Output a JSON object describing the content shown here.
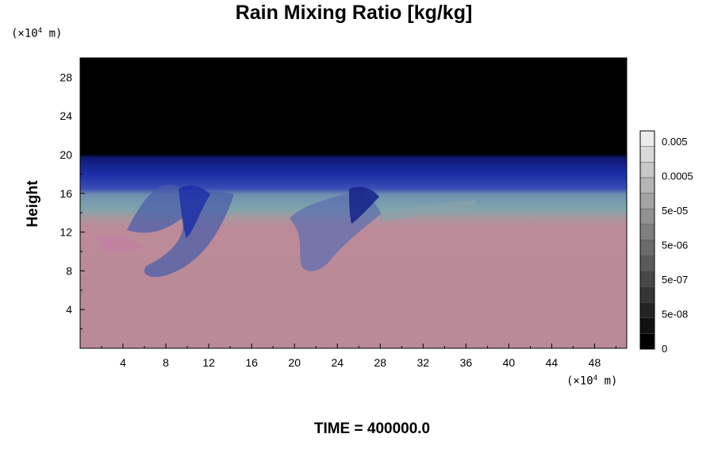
{
  "chart_data": {
    "type": "heatmap",
    "title": "Rain Mixing Ratio [kg/kg]",
    "ylabel": "Height",
    "y_unit_prefix": "(×10",
    "y_unit_exp": "4",
    "y_unit_suffix": " m)",
    "x_unit_prefix": "(×10",
    "x_unit_exp": "4",
    "x_unit_suffix": " m)",
    "xlim": [
      0,
      51
    ],
    "ylim": [
      0,
      30
    ],
    "x_ticks": [
      4,
      8,
      12,
      16,
      20,
      24,
      28,
      32,
      36,
      40,
      44,
      48
    ],
    "y_ticks": [
      4,
      8,
      12,
      16,
      20,
      24,
      28
    ],
    "colorbar": {
      "labels": [
        "0.005",
        "0.0005",
        "5e-05",
        "5e-06",
        "5e-07",
        "5e-08",
        "0"
      ],
      "levels": 14
    },
    "field_layers": [
      {
        "name": "",
        "from_height": 0,
        "to_height": 13,
        "color": "#bb8a98"
      },
      {
        "name": "",
        "from_height": 13,
        "to_height": 16.5,
        "color": "#7ea6ac"
      },
      {
        "name": "",
        "from_height": 16.5,
        "to_height": 20,
        "color": "#1a2da8"
      },
      {
        "name": "",
        "from_height": 20,
        "to_height": 30,
        "color": "#000000"
      }
    ],
    "footer": "TIME = 400000.0"
  }
}
